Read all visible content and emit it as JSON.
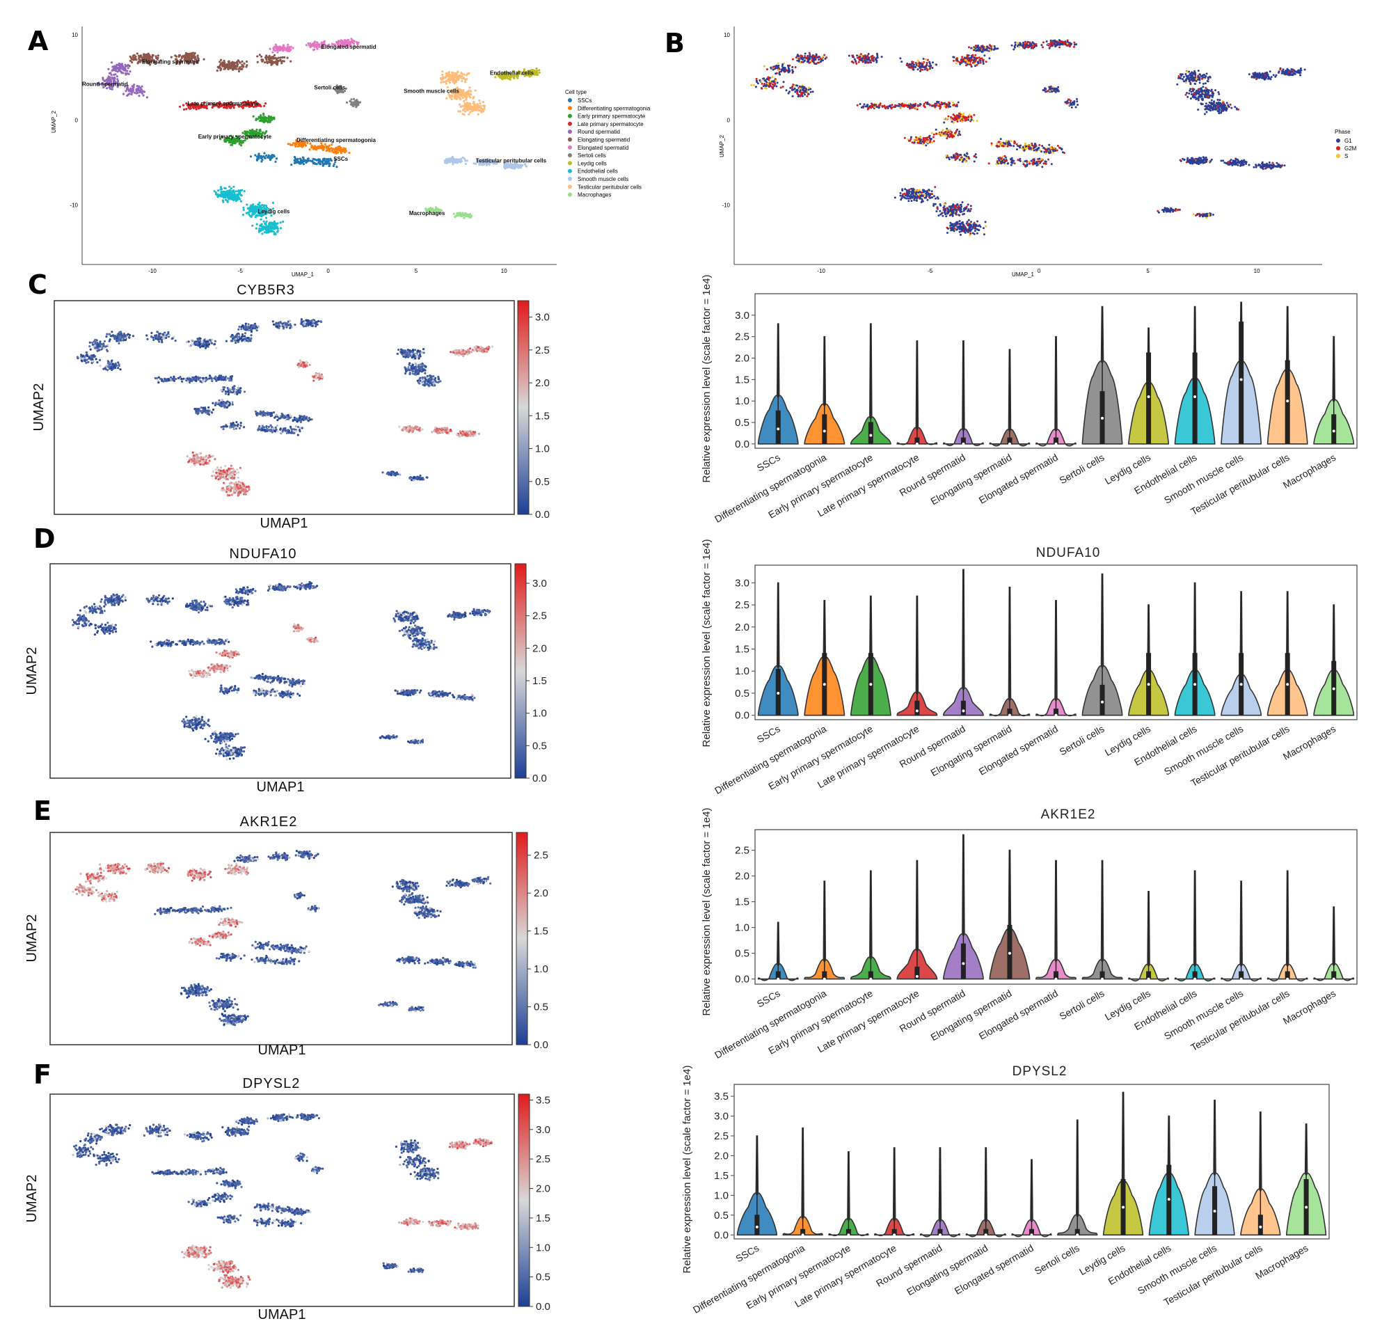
{
  "panels": {
    "A": {
      "letter": "A"
    },
    "B": {
      "letter": "B"
    },
    "C": {
      "letter": "C"
    },
    "D": {
      "letter": "D"
    },
    "E": {
      "letter": "E"
    },
    "F": {
      "letter": "F"
    }
  },
  "chart_data": [
    {
      "panel": "A",
      "type": "scatter",
      "xlabel": "UMAP_1",
      "ylabel": "UMAP_2",
      "xticks": [
        -10,
        -5,
        0,
        5,
        10
      ],
      "yticks": [
        10,
        0,
        -10
      ],
      "xlim": [
        -14,
        13
      ],
      "ylim": [
        -17,
        11
      ],
      "legend_title": "Cell type",
      "legend_position": "right",
      "categories": [
        "SSCs",
        "Differentiating spermatogonia",
        "Early primary spermatocyte",
        "Late primary spermatocyte",
        "Round spermatid",
        "Elongating spermatid",
        "Elongated spermatid",
        "Sertoli cells",
        "Leydig cells",
        "Endothelial cells",
        "Smooth muscle cells",
        "Testicular peritubular cells",
        "Macrophages"
      ],
      "colors": [
        "#1f77b4",
        "#ff7f0e",
        "#2ca02c",
        "#d62728",
        "#9467bd",
        "#8c564b",
        "#e377c2",
        "#7f7f7f",
        "#bcbd22",
        "#17becf",
        "#aec7e8",
        "#ffbb78",
        "#98df8a"
      ],
      "cluster_labels": [
        "Elongated spermatid",
        "Elongating spermatid",
        "Round spermatid",
        "Late primary spermatocyte",
        "Sertoli cells",
        "Early primary spermatocyte",
        "Differentiating spermatogonia",
        "SSCs",
        "Endothelial cells",
        "Leydig cells",
        "Testicular peritubular cells",
        "Smooth muscle cells",
        "Macrophages"
      ]
    },
    {
      "panel": "B",
      "type": "scatter",
      "xlabel": "UMAP_1",
      "ylabel": "UMAP_2",
      "xticks": [
        -10,
        -5,
        0,
        5,
        10
      ],
      "yticks": [
        10,
        0,
        -10
      ],
      "xlim": [
        -14,
        13
      ],
      "ylim": [
        -17,
        11
      ],
      "legend_title": "Phase",
      "legend_position": "right",
      "categories": [
        "G1",
        "G2M",
        "S"
      ],
      "colors": [
        "#2c3e95",
        "#d62020",
        "#f2c425"
      ]
    },
    {
      "panel": "C",
      "gene": "CYB5R3",
      "umap": {
        "type": "scatter",
        "title": "CYB5R3",
        "xlabel": "UMAP1",
        "ylabel": "UMAP2",
        "colorbar_ticks": [
          "0.0",
          "0.5",
          "1.0",
          "1.5",
          "2.0",
          "2.5",
          "3.0"
        ],
        "colorbar_max": 3.25,
        "high_expression_clusters": [
          "Leydig cells",
          "Smooth muscle cells",
          "Endothelial cells",
          "Sertoli cells"
        ]
      },
      "violin": {
        "type": "violin",
        "title": "",
        "ylabel": "Relative expression level (scale factor = 1e4)",
        "yticks": [
          0.0,
          0.5,
          1.0,
          1.5,
          2.0,
          2.5,
          3.0
        ],
        "ylim": [
          -0.1,
          3.5
        ],
        "categories": [
          "SSCs",
          "Differentiating spermatogonia",
          "Early primary spermatocyte",
          "Late primary spermatocyte",
          "Round spermatid",
          "Elongating spermatid",
          "Elongated spermatid",
          "Sertoli cells",
          "Leydig cells",
          "Endothelial cells",
          "Smooth muscle cells",
          "Testicular peritubular cells",
          "Macrophages"
        ],
        "max": [
          2.8,
          2.5,
          2.8,
          2.4,
          2.4,
          2.2,
          2.5,
          3.2,
          2.7,
          3.2,
          3.3,
          3.2,
          2.5
        ],
        "median": [
          0.35,
          0.3,
          0.2,
          0.0,
          0.0,
          0.0,
          0.0,
          0.6,
          1.1,
          1.1,
          1.5,
          1.0,
          0.3
        ],
        "bulge": [
          0.8,
          0.6,
          0.3,
          0.05,
          0.02,
          0.01,
          0.01,
          1.6,
          1.1,
          1.2,
          1.6,
          1.4,
          0.7
        ]
      }
    },
    {
      "panel": "D",
      "gene": "NDUFA10",
      "umap": {
        "type": "scatter",
        "title": "NDUFA10",
        "xlabel": "UMAP1",
        "ylabel": "UMAP2",
        "colorbar_ticks": [
          "0.0",
          "0.5",
          "1.0",
          "1.5",
          "2.0",
          "2.5",
          "3.0"
        ],
        "colorbar_max": 3.3,
        "high_expression_clusters": [
          "Sertoli cells",
          "Early primary spermatocyte"
        ]
      },
      "violin": {
        "type": "violin",
        "title": "NDUFA10",
        "ylabel": "Relative expression level (scale factor = 1e4)",
        "yticks": [
          0.0,
          0.5,
          1.0,
          1.5,
          2.0,
          2.5,
          3.0
        ],
        "ylim": [
          -0.1,
          3.4
        ],
        "categories": [
          "SSCs",
          "Differentiating spermatogonia",
          "Early primary spermatocyte",
          "Late primary spermatocyte",
          "Round spermatid",
          "Elongating spermatid",
          "Elongated spermatid",
          "Sertoli cells",
          "Leydig cells",
          "Endothelial cells",
          "Smooth muscle cells",
          "Testicular peritubular cells",
          "Macrophages"
        ],
        "max": [
          3.0,
          2.6,
          2.7,
          2.7,
          3.3,
          2.9,
          2.6,
          3.2,
          2.5,
          3.0,
          2.8,
          2.8,
          2.5
        ],
        "median": [
          0.5,
          0.7,
          0.7,
          0.1,
          0.1,
          0.0,
          0.0,
          0.3,
          0.7,
          0.7,
          0.7,
          0.7,
          0.6
        ],
        "bulge": [
          0.8,
          1.0,
          1.0,
          0.2,
          0.3,
          0.05,
          0.05,
          0.8,
          0.7,
          0.7,
          0.6,
          0.7,
          0.7
        ]
      }
    },
    {
      "panel": "E",
      "gene": "AKR1E2",
      "umap": {
        "type": "scatter",
        "title": "AKR1E2",
        "xlabel": "UMAP1",
        "ylabel": "UMAP2",
        "colorbar_ticks": [
          "0.0",
          "0.5",
          "1.0",
          "1.5",
          "2.0",
          "2.5"
        ],
        "colorbar_max": 2.8,
        "high_expression_clusters": [
          "Round spermatid",
          "Elongating spermatid",
          "Early primary spermatocyte"
        ]
      },
      "violin": {
        "type": "violin",
        "title": "AKR1E2",
        "ylabel": "Relative expression level (scale factor = 1e4)",
        "yticks": [
          0.0,
          0.5,
          1.0,
          1.5,
          2.0,
          2.5
        ],
        "ylim": [
          -0.1,
          2.9
        ],
        "categories": [
          "SSCs",
          "Differentiating spermatogonia",
          "Early primary spermatocyte",
          "Late primary spermatocyte",
          "Round spermatid",
          "Elongating spermatid",
          "Elongated spermatid",
          "Sertoli cells",
          "Leydig cells",
          "Endothelial cells",
          "Smooth muscle cells",
          "Testicular peritubular cells",
          "Macrophages"
        ],
        "max": [
          1.1,
          1.9,
          2.1,
          2.3,
          2.8,
          2.5,
          2.3,
          2.3,
          1.7,
          2.1,
          1.9,
          2.1,
          1.4
        ],
        "median": [
          0.0,
          0.0,
          0.0,
          0.05,
          0.3,
          0.5,
          0.0,
          0.0,
          0.0,
          0.0,
          0.0,
          0.0,
          0.0
        ],
        "bulge": [
          0.02,
          0.1,
          0.15,
          0.3,
          0.6,
          0.7,
          0.1,
          0.1,
          0.01,
          0.01,
          0.01,
          0.01,
          0.02
        ]
      }
    },
    {
      "panel": "F",
      "gene": "DPYSL2",
      "umap": {
        "type": "scatter",
        "title": "DPYSL2",
        "xlabel": "UMAP1",
        "ylabel": "UMAP2",
        "colorbar_ticks": [
          "0.0",
          "0.5",
          "1.0",
          "1.5",
          "2.0",
          "2.5",
          "3.0",
          "3.5"
        ],
        "colorbar_max": 3.6,
        "high_expression_clusters": [
          "Smooth muscle cells",
          "Endothelial cells",
          "Leydig cells"
        ]
      },
      "violin": {
        "type": "violin",
        "title": "DPYSL2",
        "ylabel": "Relative expression level (scale factor = 1e4)",
        "yticks": [
          0.0,
          0.5,
          1.0,
          1.5,
          2.0,
          2.5,
          3.0,
          3.5
        ],
        "ylim": [
          -0.1,
          3.8
        ],
        "categories": [
          "SSCs",
          "Differentiating spermatogonia",
          "Early primary spermatocyte",
          "Late primary spermatocyte",
          "Round spermatid",
          "Elongating spermatid",
          "Elongated spermatid",
          "Sertoli cells",
          "Leydig cells",
          "Endothelial cells",
          "Smooth muscle cells",
          "Testicular peritubular cells",
          "Macrophages"
        ],
        "max": [
          2.5,
          2.7,
          2.1,
          2.2,
          2.2,
          2.2,
          1.9,
          2.9,
          3.6,
          3.0,
          3.4,
          3.1,
          2.8
        ],
        "median": [
          0.2,
          0.0,
          0.0,
          0.0,
          0.0,
          0.0,
          0.0,
          0.0,
          0.7,
          0.9,
          0.6,
          0.2,
          0.7
        ],
        "bulge": [
          0.7,
          0.1,
          0.05,
          0.05,
          0.02,
          0.02,
          0.02,
          0.15,
          1.0,
          1.2,
          1.2,
          0.8,
          1.2
        ]
      }
    }
  ]
}
